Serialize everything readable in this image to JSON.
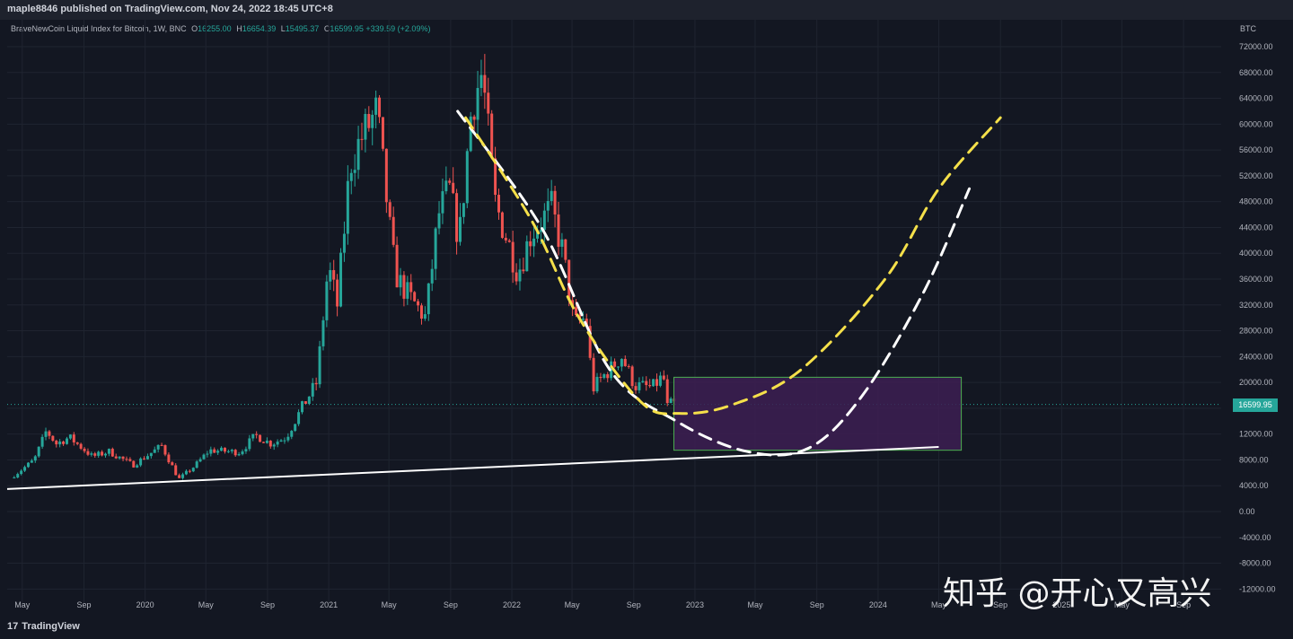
{
  "header": {
    "publisher_line": "maple8846 published on TradingView.com, Nov 24, 2022 18:45 UTC+8"
  },
  "legend": {
    "symbol": "BraveNewCoin Liquid Index for Bitcoin, 1W, BNC",
    "open_label": "O",
    "open": "16255.00",
    "high_label": "H",
    "high": "16654.39",
    "low_label": "L",
    "low": "15495.37",
    "close_label": "C",
    "close": "16599.95",
    "change": "+339.59 (+2.09%)"
  },
  "axis_unit": "BTC",
  "price_tag": "16599.95",
  "watermark": "知乎 @开心又高兴",
  "footer": {
    "logo_text": "TradingView"
  },
  "colors": {
    "background": "#131722",
    "up": "#26a69a",
    "down": "#ef5350",
    "white_curve": "#ffffff",
    "yellow_curve": "#f5e04a",
    "box_fill": "#3d1f52",
    "box_border": "#4caf50"
  },
  "chart_data": {
    "type": "candlestick",
    "title": "",
    "y_ticks": [
      "72000.00",
      "68000.00",
      "64000.00",
      "60000.00",
      "56000.00",
      "52000.00",
      "48000.00",
      "44000.00",
      "40000.00",
      "36000.00",
      "32000.00",
      "28000.00",
      "24000.00",
      "20000.00",
      "16000.00",
      "12000.00",
      "8000.00",
      "4000.00",
      "0.00",
      "-4000.00",
      "-8000.00",
      "-12000.00"
    ],
    "ylim": [
      -12000,
      74000
    ],
    "x_ticks": [
      "May",
      "Sep",
      "2020",
      "May",
      "Sep",
      "2021",
      "May",
      "Sep",
      "2022",
      "May",
      "Sep",
      "2023",
      "May",
      "Sep",
      "2024",
      "May",
      "Sep",
      "2025",
      "May",
      "Sep"
    ],
    "xlim": [
      "2019-04-01",
      "2025-11-15"
    ],
    "price_path": [
      [
        "2019-04-15",
        5200
      ],
      [
        "2019-06-01",
        8000
      ],
      [
        "2019-06-25",
        12500
      ],
      [
        "2019-07-15",
        10500
      ],
      [
        "2019-08-10",
        11500
      ],
      [
        "2019-09-25",
        8500
      ],
      [
        "2019-10-28",
        9300
      ],
      [
        "2019-12-15",
        7200
      ],
      [
        "2020-02-10",
        10200
      ],
      [
        "2020-03-15",
        5000
      ],
      [
        "2020-04-15",
        7000
      ],
      [
        "2020-05-15",
        9500
      ],
      [
        "2020-07-15",
        9200
      ],
      [
        "2020-08-15",
        11800
      ],
      [
        "2020-09-15",
        10500
      ],
      [
        "2020-10-15",
        11500
      ],
      [
        "2020-11-15",
        16000
      ],
      [
        "2020-12-15",
        20000
      ],
      [
        "2021-01-07",
        38000
      ],
      [
        "2021-01-25",
        32000
      ],
      [
        "2021-02-20",
        54000
      ],
      [
        "2021-03-15",
        58000
      ],
      [
        "2021-04-14",
        62000
      ],
      [
        "2021-05-15",
        40000
      ],
      [
        "2021-05-25",
        36000
      ],
      [
        "2021-06-20",
        33000
      ],
      [
        "2021-07-20",
        30000
      ],
      [
        "2021-08-15",
        46000
      ],
      [
        "2021-09-05",
        50000
      ],
      [
        "2021-09-25",
        42000
      ],
      [
        "2021-10-20",
        63000
      ],
      [
        "2021-11-10",
        68000
      ],
      [
        "2021-12-05",
        48000
      ],
      [
        "2022-01-20",
        37000
      ],
      [
        "2022-02-15",
        43000
      ],
      [
        "2022-03-28",
        47000
      ],
      [
        "2022-04-20",
        40000
      ],
      [
        "2022-05-12",
        29000
      ],
      [
        "2022-06-05",
        30000
      ],
      [
        "2022-06-18",
        19000
      ],
      [
        "2022-07-10",
        21000
      ],
      [
        "2022-08-15",
        24000
      ],
      [
        "2022-09-10",
        19500
      ],
      [
        "2022-10-15",
        19200
      ],
      [
        "2022-11-06",
        21000
      ],
      [
        "2022-11-14",
        16200
      ],
      [
        "2022-11-21",
        16600
      ]
    ],
    "support_line": [
      [
        "2019-04-01",
        3500
      ],
      [
        "2024-05-01",
        10000
      ]
    ],
    "zone_box": {
      "x0": "2022-11-20",
      "x1": "2024-06-15",
      "y0": 9500,
      "y1": 20800
    },
    "projection_white": [
      [
        "2021-09-15",
        62000
      ],
      [
        "2022-03-01",
        44000
      ],
      [
        "2022-07-15",
        22000
      ],
      [
        "2022-11-25",
        14000
      ],
      [
        "2023-04-15",
        9300
      ],
      [
        "2023-08-15",
        9800
      ],
      [
        "2023-12-01",
        18000
      ],
      [
        "2024-04-01",
        34000
      ],
      [
        "2024-07-01",
        50000
      ]
    ],
    "projection_yellow": [
      [
        "2021-10-01",
        61000
      ],
      [
        "2022-02-10",
        45000
      ],
      [
        "2022-05-15",
        30000
      ],
      [
        "2022-09-15",
        17000
      ],
      [
        "2022-12-01",
        15200
      ],
      [
        "2023-03-15",
        16500
      ],
      [
        "2023-08-01",
        22000
      ],
      [
        "2024-01-15",
        36000
      ],
      [
        "2024-05-01",
        50000
      ],
      [
        "2024-09-01",
        61000
      ]
    ],
    "last_price": 16599.95,
    "grid": true,
    "legend_position": "top-left"
  }
}
